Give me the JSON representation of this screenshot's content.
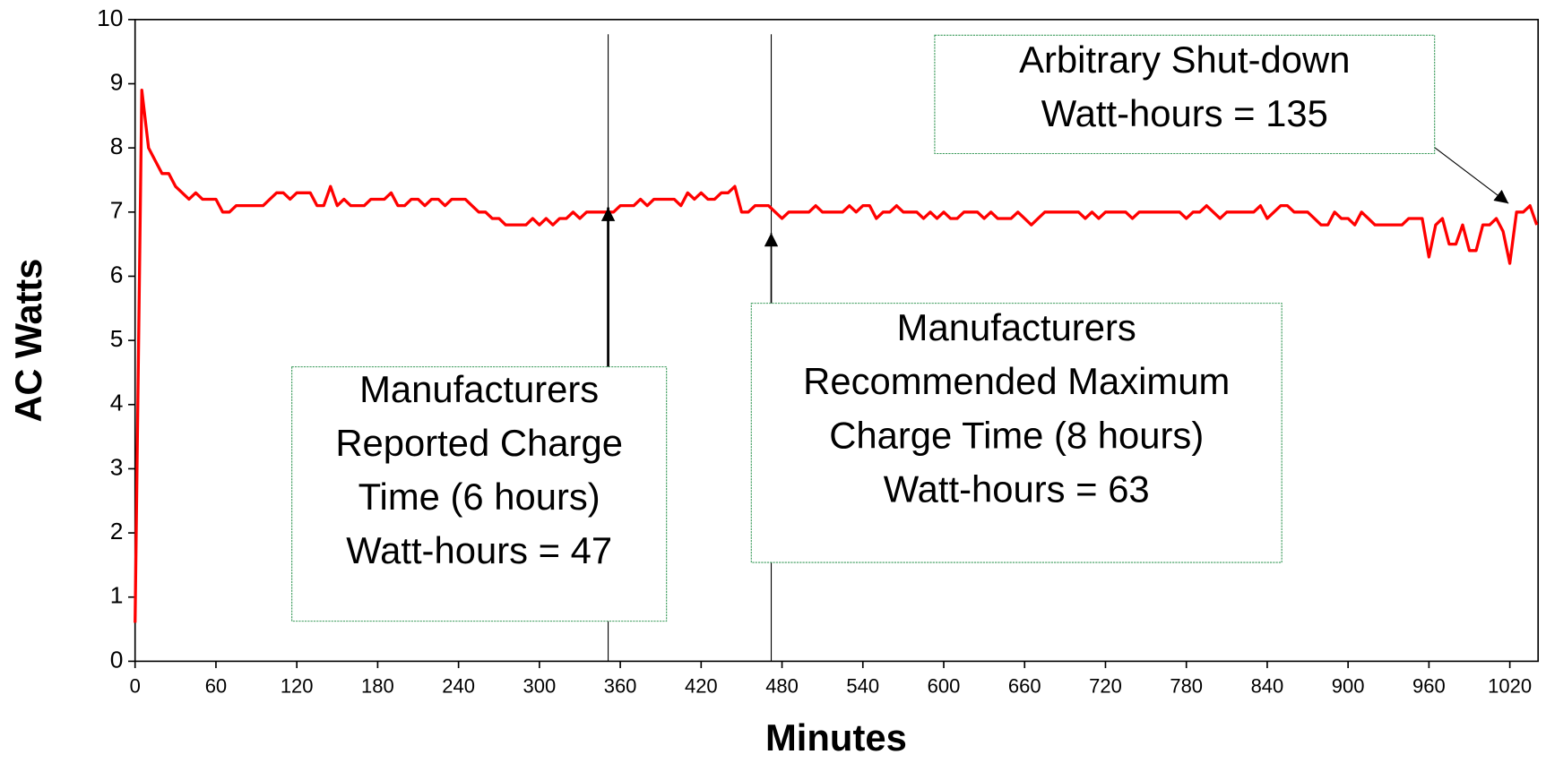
{
  "chart_data": {
    "type": "line",
    "xlabel": "Minutes",
    "ylabel": "AC Watts",
    "color": "#ff0000",
    "xlim": [
      0,
      1041
    ],
    "ylim": [
      0,
      10
    ],
    "xticks": [
      0,
      60,
      120,
      180,
      240,
      300,
      360,
      420,
      480,
      540,
      600,
      660,
      720,
      780,
      840,
      900,
      960,
      1020
    ],
    "yticks": [
      0,
      1,
      2,
      3,
      4,
      5,
      6,
      7,
      8,
      9,
      10
    ],
    "vlines": [
      351,
      472
    ],
    "annotations": [
      {
        "lines": [
          "Manufacturers",
          "Reported Charge",
          "Time (6 hours)",
          "Watt-hours = 47"
        ]
      },
      {
        "lines": [
          "Manufacturers",
          "Recommended Maximum",
          "Charge Time (8 hours)",
          "Watt-hours = 63"
        ]
      },
      {
        "lines": [
          "Arbitrary Shut-down",
          "Watt-hours = 135"
        ]
      }
    ],
    "x": [
      0,
      5,
      10,
      15,
      20,
      25,
      30,
      35,
      40,
      45,
      50,
      55,
      60,
      65,
      70,
      75,
      80,
      85,
      90,
      95,
      100,
      105,
      110,
      115,
      120,
      125,
      130,
      135,
      140,
      145,
      150,
      155,
      160,
      165,
      170,
      175,
      180,
      185,
      190,
      195,
      200,
      205,
      210,
      215,
      220,
      225,
      230,
      235,
      240,
      245,
      250,
      255,
      260,
      265,
      270,
      275,
      280,
      285,
      290,
      295,
      300,
      305,
      310,
      315,
      320,
      325,
      330,
      335,
      340,
      345,
      350,
      355,
      360,
      365,
      370,
      375,
      380,
      385,
      390,
      395,
      400,
      405,
      410,
      415,
      420,
      425,
      430,
      435,
      440,
      445,
      450,
      455,
      460,
      465,
      470,
      475,
      480,
      485,
      490,
      495,
      500,
      505,
      510,
      515,
      520,
      525,
      530,
      535,
      540,
      545,
      550,
      555,
      560,
      565,
      570,
      575,
      580,
      585,
      590,
      595,
      600,
      605,
      610,
      615,
      620,
      625,
      630,
      635,
      640,
      645,
      650,
      655,
      660,
      665,
      670,
      675,
      680,
      685,
      690,
      695,
      700,
      705,
      710,
      715,
      720,
      725,
      730,
      735,
      740,
      745,
      750,
      755,
      760,
      765,
      770,
      775,
      780,
      785,
      790,
      795,
      800,
      805,
      810,
      815,
      820,
      825,
      830,
      835,
      840,
      845,
      850,
      855,
      860,
      865,
      870,
      875,
      880,
      885,
      890,
      895,
      900,
      905,
      910,
      915,
      920,
      925,
      930,
      935,
      940,
      945,
      950,
      955,
      960,
      965,
      970,
      975,
      980,
      985,
      990,
      995,
      1000,
      1005,
      1010,
      1015,
      1020,
      1025,
      1030,
      1035,
      1040
    ],
    "values": [
      0.6,
      8.9,
      8.0,
      7.8,
      7.6,
      7.6,
      7.4,
      7.3,
      7.2,
      7.3,
      7.2,
      7.2,
      7.2,
      7.0,
      7.0,
      7.1,
      7.1,
      7.1,
      7.1,
      7.1,
      7.2,
      7.3,
      7.3,
      7.2,
      7.3,
      7.3,
      7.3,
      7.1,
      7.1,
      7.4,
      7.1,
      7.2,
      7.1,
      7.1,
      7.1,
      7.2,
      7.2,
      7.2,
      7.3,
      7.1,
      7.1,
      7.2,
      7.2,
      7.1,
      7.2,
      7.2,
      7.1,
      7.2,
      7.2,
      7.2,
      7.1,
      7.0,
      7.0,
      6.9,
      6.9,
      6.8,
      6.8,
      6.8,
      6.8,
      6.9,
      6.8,
      6.9,
      6.8,
      6.9,
      6.9,
      7.0,
      6.9,
      7.0,
      7.0,
      7.0,
      7.0,
      7.0,
      7.1,
      7.1,
      7.1,
      7.2,
      7.1,
      7.2,
      7.2,
      7.2,
      7.2,
      7.1,
      7.3,
      7.2,
      7.3,
      7.2,
      7.2,
      7.3,
      7.3,
      7.4,
      7.0,
      7.0,
      7.1,
      7.1,
      7.1,
      7.0,
      6.9,
      7.0,
      7.0,
      7.0,
      7.0,
      7.1,
      7.0,
      7.0,
      7.0,
      7.0,
      7.1,
      7.0,
      7.1,
      7.1,
      6.9,
      7.0,
      7.0,
      7.1,
      7.0,
      7.0,
      7.0,
      6.9,
      7.0,
      6.9,
      7.0,
      6.9,
      6.9,
      7.0,
      7.0,
      7.0,
      6.9,
      7.0,
      6.9,
      6.9,
      6.9,
      7.0,
      6.9,
      6.8,
      6.9,
      7.0,
      7.0,
      7.0,
      7.0,
      7.0,
      7.0,
      6.9,
      7.0,
      6.9,
      7.0,
      7.0,
      7.0,
      7.0,
      6.9,
      7.0,
      7.0,
      7.0,
      7.0,
      7.0,
      7.0,
      7.0,
      6.9,
      7.0,
      7.0,
      7.1,
      7.0,
      6.9,
      7.0,
      7.0,
      7.0,
      7.0,
      7.0,
      7.1,
      6.9,
      7.0,
      7.1,
      7.1,
      7.0,
      7.0,
      7.0,
      6.9,
      6.8,
      6.8,
      7.0,
      6.9,
      6.9,
      6.8,
      7.0,
      6.9,
      6.8,
      6.8,
      6.8,
      6.8,
      6.8,
      6.9,
      6.9,
      6.9,
      6.3,
      6.8,
      6.9,
      6.5,
      6.5,
      6.8,
      6.4,
      6.4,
      6.8,
      6.8,
      6.9,
      6.7,
      6.2,
      7.0,
      7.0,
      7.1,
      6.8
    ]
  }
}
